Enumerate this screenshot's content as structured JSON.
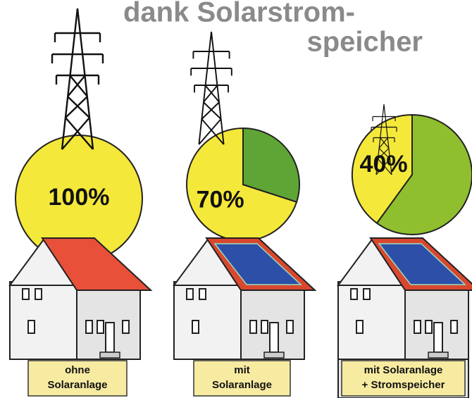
{
  "header": {
    "title_lines": [
      "dank Solarstrom-",
      "speicher"
    ]
  },
  "chart_data": [
    {
      "type": "pie",
      "categories": [
        null
      ],
      "values": [
        100
      ],
      "value_labels": [
        "100%"
      ],
      "colors": [
        "#f4e83a"
      ],
      "caption_lines": [
        "ohne",
        "Solaranlage"
      ]
    },
    {
      "type": "pie",
      "categories": [
        null,
        null
      ],
      "values": [
        70,
        30
      ],
      "value_labels": [
        "70%",
        null
      ],
      "colors": [
        "#f4e83a",
        "#5fa535"
      ],
      "caption_lines": [
        "mit",
        "Solaranlage"
      ]
    },
    {
      "type": "pie",
      "categories": [
        null,
        null
      ],
      "values": [
        40,
        60
      ],
      "value_labels": [
        "40%",
        null
      ],
      "colors": [
        "#f4e83a",
        "#8fbf2f"
      ],
      "caption_lines": [
        "mit Solaranlage",
        "+ Stromspeicher"
      ]
    }
  ]
}
